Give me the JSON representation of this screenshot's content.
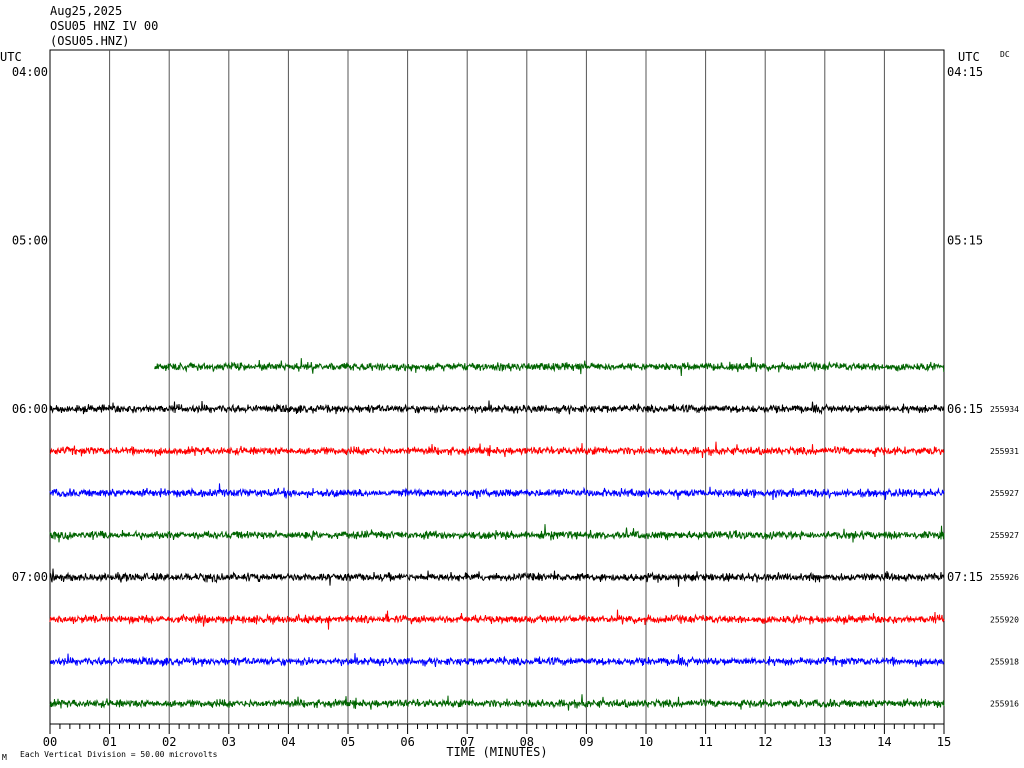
{
  "header": {
    "date": "Aug25,2025",
    "station": "OSU05 HNZ IV 00",
    "channel": "(OSU05.HNZ)"
  },
  "left_axis_label": "UTC",
  "right_axis_label": "UTC",
  "dc_label": "DC",
  "footer": {
    "scale_note": "Each Vertical Division =   50.00 microvolts",
    "scale_mark": "M"
  },
  "chart_data": {
    "type": "line",
    "title": "",
    "xlabel": "TIME (MINUTES)",
    "ylabel": "",
    "xlim": [
      0,
      15
    ],
    "x_ticks": [
      "00",
      "01",
      "02",
      "03",
      "04",
      "05",
      "06",
      "07",
      "08",
      "09",
      "10",
      "11",
      "12",
      "13",
      "14",
      "15"
    ],
    "left_time_labels": [
      {
        "row": 0,
        "label": "04:00"
      },
      {
        "row": 4,
        "label": "05:00"
      },
      {
        "row": 8,
        "label": "06:00"
      },
      {
        "row": 12,
        "label": "07:00"
      }
    ],
    "right_time_labels": [
      {
        "row": 0,
        "label": "04:15"
      },
      {
        "row": 4,
        "label": "05:15"
      },
      {
        "row": 8,
        "label": "06:15"
      },
      {
        "row": 12,
        "label": "07:15"
      }
    ],
    "grid": true,
    "traces": [
      {
        "row": 7,
        "color": "#006400",
        "start_min": 1.75,
        "end_min": 15,
        "count": ""
      },
      {
        "row": 8,
        "color": "#000000",
        "start_min": 0,
        "end_min": 15,
        "count": "255934"
      },
      {
        "row": 9,
        "color": "#ff0000",
        "start_min": 0,
        "end_min": 15,
        "count": "255931"
      },
      {
        "row": 10,
        "color": "#0000ff",
        "start_min": 0,
        "end_min": 15,
        "count": "255927"
      },
      {
        "row": 11,
        "color": "#006400",
        "start_min": 0,
        "end_min": 15,
        "count": "255927"
      },
      {
        "row": 12,
        "color": "#000000",
        "start_min": 0,
        "end_min": 15,
        "count": "255926"
      },
      {
        "row": 13,
        "color": "#ff0000",
        "start_min": 0,
        "end_min": 15,
        "count": "255920"
      },
      {
        "row": 14,
        "color": "#0000ff",
        "start_min": 0,
        "end_min": 15,
        "count": "255918"
      },
      {
        "row": 15,
        "color": "#006400",
        "start_min": 0,
        "end_min": 15,
        "count": "255916"
      }
    ]
  }
}
